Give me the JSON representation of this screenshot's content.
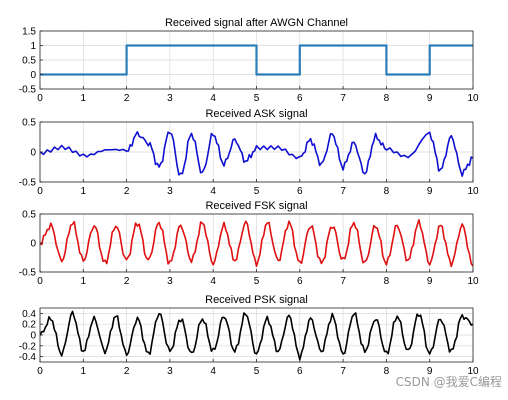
{
  "colors": {
    "square": "#2a7fb8",
    "ask": "#1010d0",
    "fsk": "#e01010",
    "psk": "#000000",
    "grid": "#d9d9d9",
    "axis": "#262626"
  },
  "watermark": "CSDN @我爱C编程",
  "chart_data": [
    {
      "type": "line",
      "title": "Received signal after AWGN Channel",
      "xlim": [
        0,
        10
      ],
      "ylim": [
        -0.5,
        1.5
      ],
      "xticks": [
        "0",
        "1",
        "2",
        "3",
        "4",
        "5",
        "6",
        "7",
        "8",
        "9",
        "10"
      ],
      "yticks": [
        "-0.5",
        "0",
        "0.5",
        "1",
        "1.5"
      ],
      "ytick_values": [
        -0.5,
        0,
        0.5,
        1,
        1.5
      ],
      "grid": true,
      "series": [
        {
          "x": [
            0,
            2,
            2,
            5,
            5,
            6,
            6,
            8,
            8,
            9,
            9,
            10
          ],
          "values": [
            0,
            0,
            1,
            1,
            0,
            0,
            1,
            1,
            0,
            0,
            1,
            1
          ]
        }
      ]
    },
    {
      "type": "line",
      "title": "Received ASK signal",
      "xlim": [
        0,
        10
      ],
      "ylim": [
        -0.5,
        0.5
      ],
      "xticks": [
        "0",
        "1",
        "2",
        "3",
        "4",
        "5",
        "6",
        "7",
        "8",
        "9",
        "10"
      ],
      "yticks": [
        "-0.5",
        "0",
        "0.5"
      ],
      "ytick_values": [
        -0.5,
        0,
        0.5
      ],
      "grid": true,
      "series": [
        {
          "x": [
            0,
            0.5,
            1,
            1.5,
            2,
            2.25,
            2.5,
            2.75,
            3,
            3.25,
            3.5,
            3.75,
            4,
            4.25,
            4.5,
            4.75,
            5,
            5.5,
            6,
            6.25,
            6.5,
            6.75,
            7,
            7.25,
            7.5,
            7.75,
            8,
            8.5,
            9,
            9.25,
            9.5,
            9.75,
            10
          ],
          "values": [
            0,
            0.05,
            -0.05,
            0.05,
            0,
            0.3,
            0.15,
            -0.25,
            0.35,
            -0.4,
            0.3,
            -0.35,
            0.3,
            -0.2,
            0.2,
            -0.15,
            0.05,
            0.1,
            -0.1,
            0.2,
            -0.2,
            0.3,
            -0.25,
            0.15,
            -0.35,
            0.25,
            0.05,
            -0.05,
            0.3,
            -0.3,
            0.25,
            -0.35,
            -0.1
          ]
        }
      ]
    },
    {
      "type": "line",
      "title": "Received FSK signal",
      "xlim": [
        0,
        10
      ],
      "ylim": [
        -0.5,
        0.5
      ],
      "xticks": [
        "0",
        "1",
        "2",
        "3",
        "4",
        "5",
        "6",
        "7",
        "8",
        "9",
        "10"
      ],
      "yticks": [
        "-0.5",
        "0",
        "0.5"
      ],
      "ytick_values": [
        -0.5,
        0,
        0.5
      ],
      "grid": true,
      "series": [
        {
          "x": [
            0,
            0.25,
            0.5,
            0.75,
            1,
            1.25,
            1.5,
            1.75,
            2,
            2.25,
            2.5,
            2.75,
            3,
            3.25,
            3.5,
            3.75,
            4,
            4.25,
            4.5,
            4.75,
            5,
            5.25,
            5.5,
            5.75,
            6,
            6.25,
            6.5,
            6.75,
            7,
            7.25,
            7.5,
            7.75,
            8,
            8.25,
            8.5,
            8.75,
            9,
            9.25,
            9.5,
            9.75,
            10
          ],
          "values": [
            0,
            0.3,
            -0.3,
            0.35,
            -0.3,
            0.3,
            -0.35,
            0.3,
            -0.3,
            0.35,
            -0.3,
            0.35,
            -0.35,
            0.3,
            -0.3,
            0.35,
            -0.35,
            0.3,
            -0.3,
            0.35,
            -0.35,
            0.35,
            -0.3,
            0.35,
            -0.35,
            0.3,
            -0.35,
            0.3,
            -0.3,
            0.35,
            -0.35,
            0.3,
            -0.35,
            0.3,
            -0.3,
            0.35,
            -0.35,
            0.3,
            -0.35,
            0.3,
            -0.4
          ]
        }
      ]
    },
    {
      "type": "line",
      "title": "Received PSK signal",
      "xlim": [
        0,
        10
      ],
      "ylim": [
        -0.5,
        0.5
      ],
      "xticks": [
        "0",
        "1",
        "2",
        "3",
        "4",
        "5",
        "6",
        "7",
        "8",
        "9",
        "10"
      ],
      "yticks": [
        "-0.4",
        "-0.2",
        "0",
        "0.2",
        "0.4"
      ],
      "ytick_values": [
        -0.4,
        -0.2,
        0,
        0.2,
        0.4
      ],
      "grid": true,
      "series": [
        {
          "x": [
            0,
            0.25,
            0.5,
            0.75,
            1,
            1.25,
            1.5,
            1.75,
            2,
            2.25,
            2.5,
            2.75,
            3,
            3.25,
            3.5,
            3.75,
            4,
            4.25,
            4.5,
            4.75,
            5,
            5.25,
            5.5,
            5.75,
            6,
            6.25,
            6.5,
            6.75,
            7,
            7.25,
            7.5,
            7.75,
            8,
            8.25,
            8.5,
            8.75,
            9,
            9.25,
            9.5,
            9.75,
            10
          ],
          "values": [
            0,
            0.3,
            -0.35,
            0.4,
            -0.3,
            0.3,
            -0.3,
            0.35,
            -0.35,
            0.3,
            -0.35,
            0.4,
            -0.3,
            0.3,
            -0.35,
            0.3,
            -0.3,
            0.35,
            -0.3,
            0.4,
            -0.35,
            0.3,
            -0.3,
            0.35,
            -0.4,
            0.3,
            -0.3,
            0.35,
            -0.35,
            0.4,
            -0.3,
            0.3,
            -0.35,
            0.35,
            -0.3,
            0.4,
            -0.35,
            0.3,
            -0.3,
            0.35,
            0.2
          ]
        }
      ]
    }
  ]
}
